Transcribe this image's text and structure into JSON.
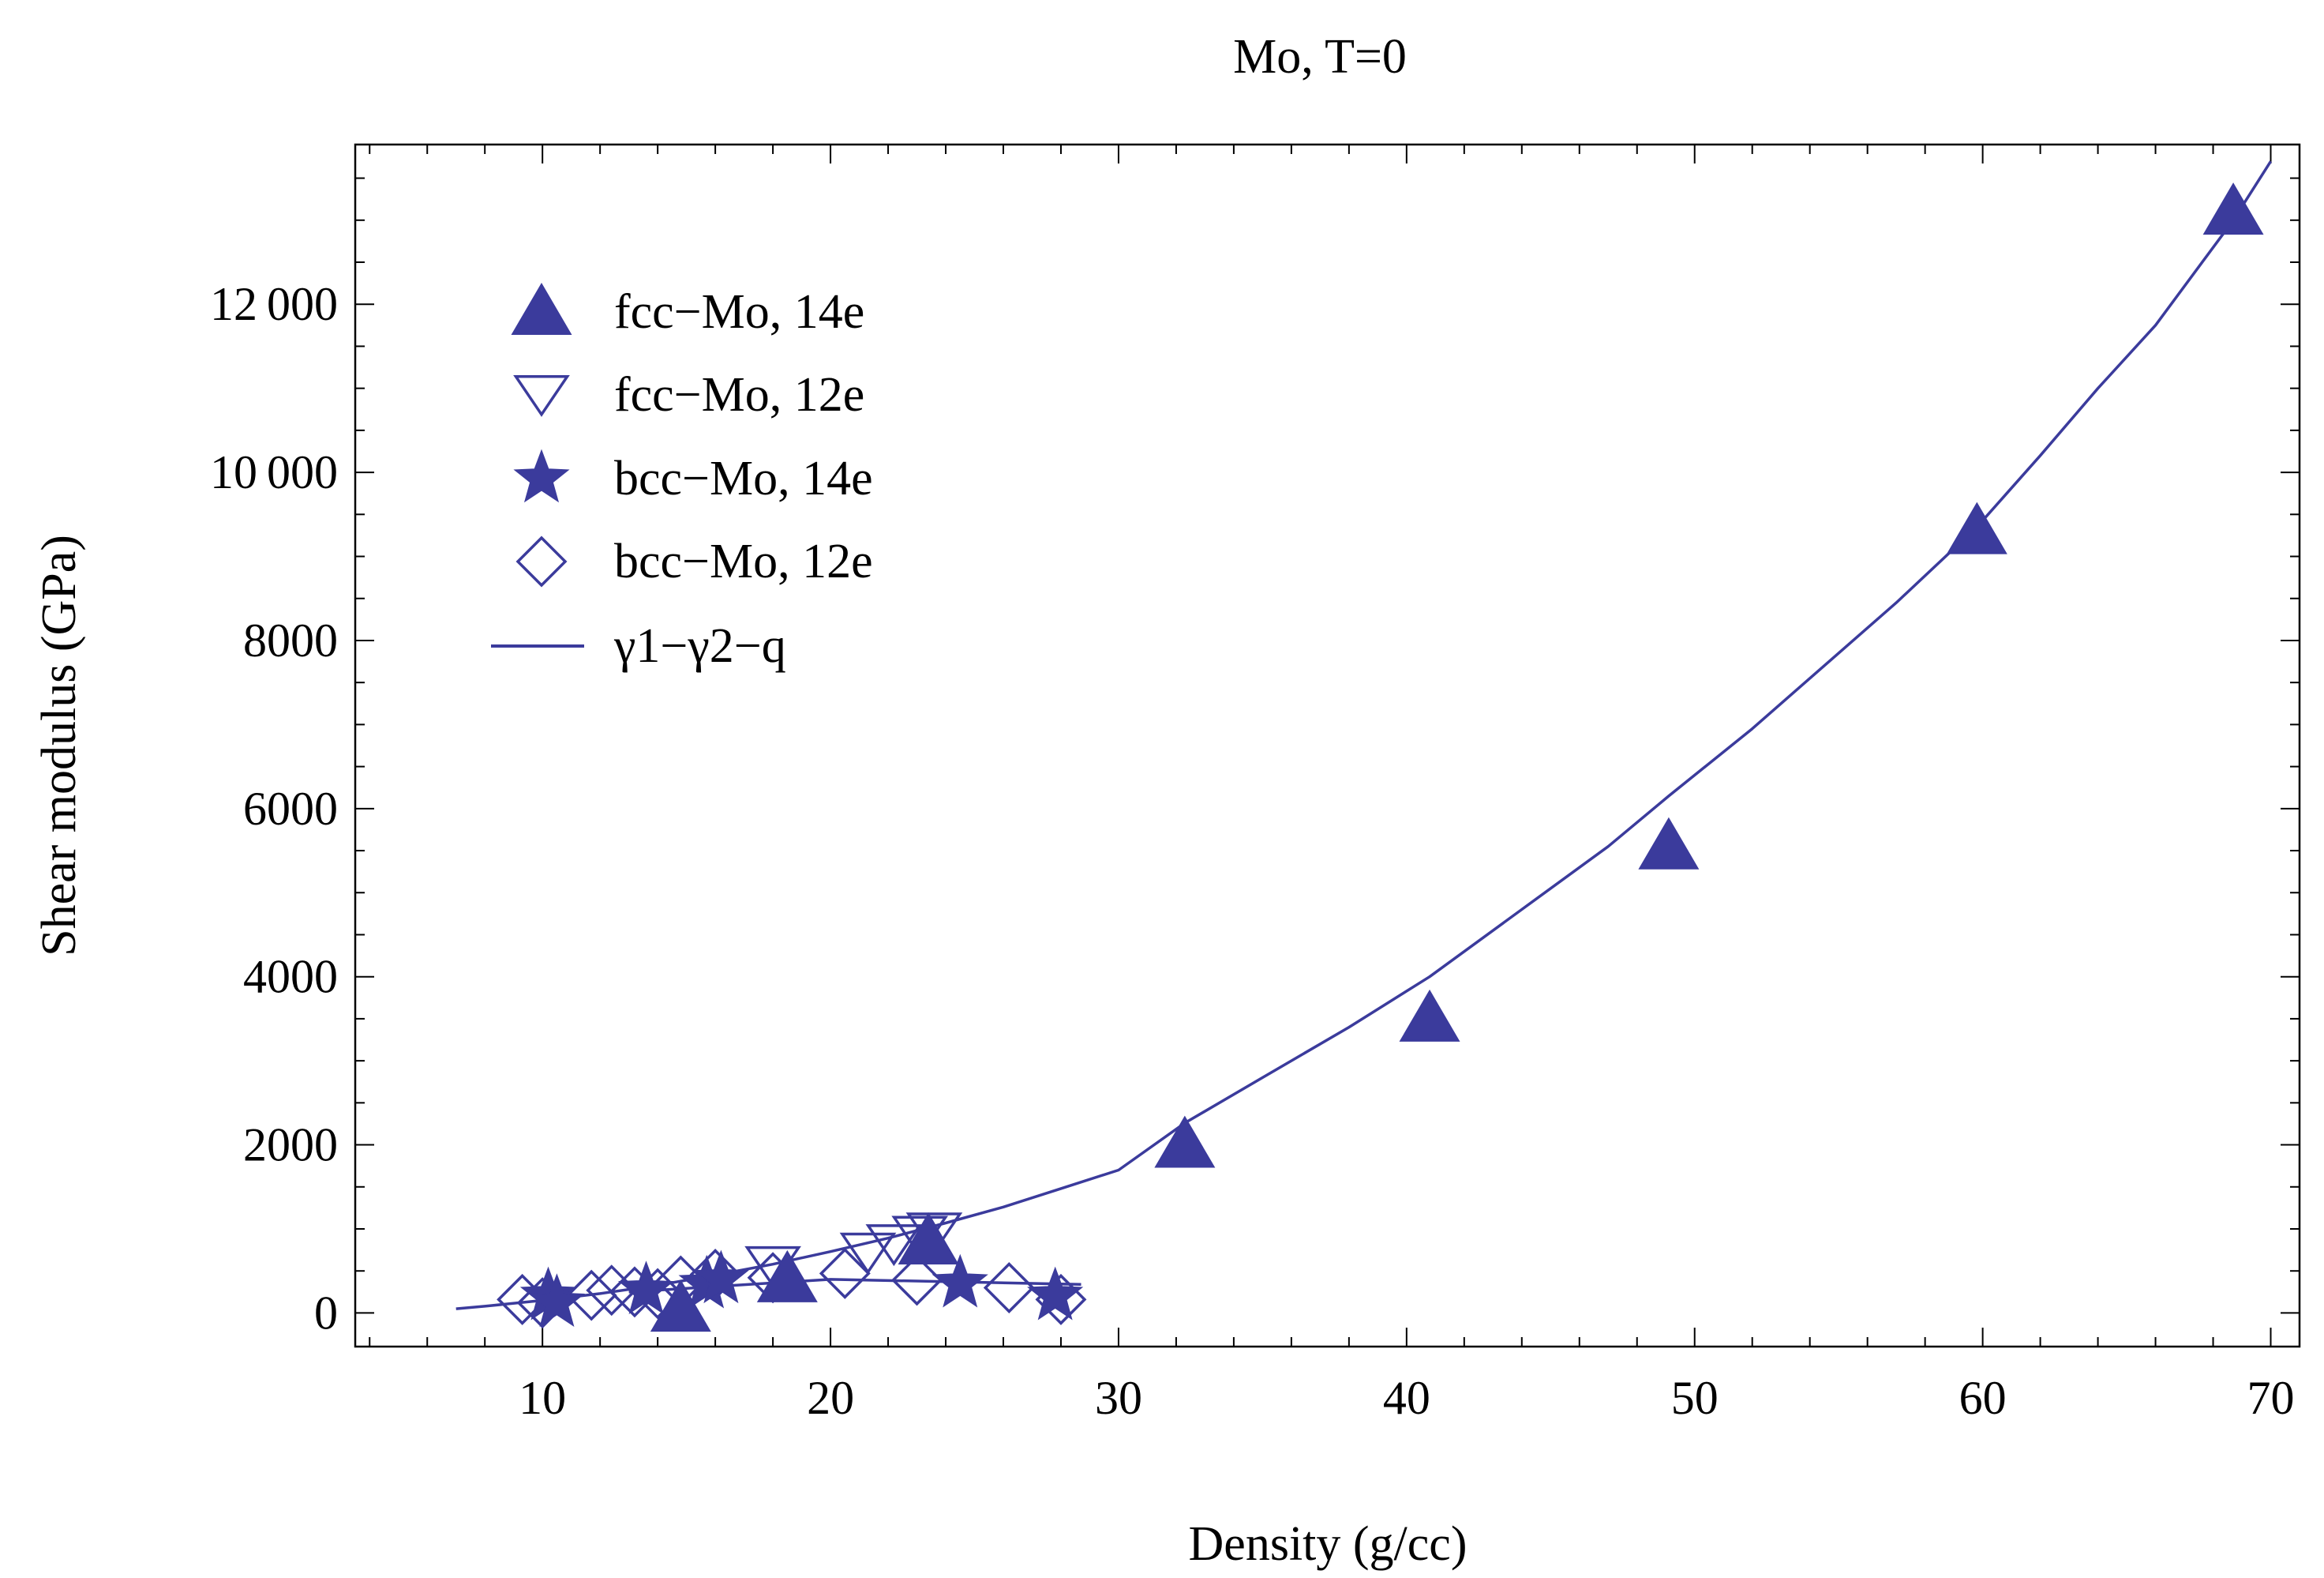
{
  "chart_data": {
    "type": "scatter",
    "title": "Mo, T=0",
    "xlabel": "Density (g/cc)",
    "ylabel": "Shear modulus (GPa)",
    "xlim": [
      3.5,
      71
    ],
    "ylim": [
      -400,
      13900
    ],
    "x_ticks": [
      10,
      20,
      30,
      40,
      50,
      60,
      70
    ],
    "x_tick_labels": [
      "10",
      "20",
      "30",
      "40",
      "50",
      "60",
      "70"
    ],
    "y_ticks": [
      0,
      2000,
      4000,
      6000,
      8000,
      10000,
      12000
    ],
    "y_tick_labels": [
      "0",
      "2000",
      "4000",
      "6000",
      "8000",
      "10 000",
      "12 000"
    ],
    "grid": false,
    "legend_position": "top-left",
    "colors": {
      "series": "#3b3b9c",
      "axes": "#000000"
    },
    "series": [
      {
        "name": "fcc−Mo, 14e",
        "marker": "triangle-up-filled",
        "x": [
          14.8,
          18.5,
          23.4,
          32.3,
          40.8,
          49.1,
          59.8,
          68.7
        ],
        "y": [
          50,
          400,
          850,
          2000,
          3500,
          5550,
          9300,
          13100
        ]
      },
      {
        "name": "fcc−Mo, 12e",
        "marker": "triangle-down-open",
        "x": [
          18.0,
          21.3,
          22.2,
          23.1,
          23.6
        ],
        "y": [
          560,
          720,
          820,
          920,
          960
        ]
      },
      {
        "name": "bcc−Mo, 14e",
        "marker": "star-filled",
        "x": [
          10.2,
          10.5,
          13.6,
          15.7,
          16.2,
          24.5,
          27.8
        ],
        "y": [
          200,
          120,
          270,
          340,
          400,
          350,
          200
        ]
      },
      {
        "name": "bcc−Mo, 12e",
        "marker": "diamond-open",
        "x": [
          9.3,
          10.0,
          11.7,
          12.4,
          13.2,
          14.0,
          14.8,
          16.0,
          18.0,
          20.5,
          23.0,
          26.2,
          28.0
        ],
        "y": [
          160,
          120,
          210,
          270,
          250,
          230,
          380,
          460,
          420,
          470,
          390,
          300,
          160
        ]
      },
      {
        "name": "γ1−γ2−q",
        "marker": "line",
        "x": [
          7,
          8,
          10,
          12,
          14,
          16,
          18,
          20,
          22,
          24,
          26,
          28,
          30,
          32.3,
          35,
          38,
          40.8,
          44,
          47,
          49.1,
          52,
          55,
          57,
          59.8,
          62,
          64,
          66,
          68.7,
          70
        ],
        "y": [
          50,
          80,
          150,
          230,
          330,
          450,
          580,
          730,
          890,
          1070,
          1260,
          1480,
          1700,
          2260,
          2800,
          3400,
          4000,
          4800,
          5550,
          6150,
          6950,
          7850,
          8450,
          9350,
          10200,
          11000,
          11750,
          13000,
          13700
        ]
      }
    ]
  }
}
